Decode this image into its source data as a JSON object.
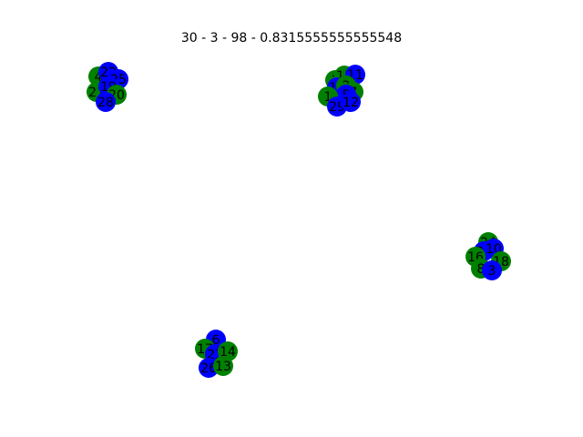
{
  "title": "30 - 3 - 98 - 0.8315555555555548",
  "colors": {
    "green": "#008000",
    "blue": "#0000ff",
    "label": "#000000"
  },
  "nodes": [
    {
      "id": "4",
      "color": "green"
    },
    {
      "id": "22",
      "color": "blue"
    },
    {
      "id": "25",
      "color": "blue"
    },
    {
      "id": "21",
      "color": "green"
    },
    {
      "id": "19",
      "color": "blue"
    },
    {
      "id": "20",
      "color": "green"
    },
    {
      "id": "28",
      "color": "blue"
    },
    {
      "id": "3",
      "color": "green"
    },
    {
      "id": "15",
      "color": "green"
    },
    {
      "id": "11",
      "color": "blue"
    },
    {
      "id": "16",
      "color": "blue"
    },
    {
      "id": "2",
      "color": "green"
    },
    {
      "id": "7",
      "color": "green"
    },
    {
      "id": "5",
      "color": "blue"
    },
    {
      "id": "1",
      "color": "green"
    },
    {
      "id": "29",
      "color": "blue"
    },
    {
      "id": "12",
      "color": "blue"
    },
    {
      "id": "24",
      "color": "green"
    },
    {
      "id": "27",
      "color": "blue"
    },
    {
      "id": "10",
      "color": "blue"
    },
    {
      "id": "16b",
      "label": "16",
      "color": "green"
    },
    {
      "id": "18",
      "color": "green"
    },
    {
      "id": "8",
      "color": "green"
    },
    {
      "id": "3b",
      "label": "3",
      "color": "blue"
    },
    {
      "id": "6",
      "color": "blue"
    },
    {
      "id": "17",
      "color": "green"
    },
    {
      "id": "23",
      "color": "blue"
    },
    {
      "id": "14",
      "color": "green"
    },
    {
      "id": "26",
      "color": "blue"
    },
    {
      "id": "13",
      "color": "green"
    }
  ]
}
